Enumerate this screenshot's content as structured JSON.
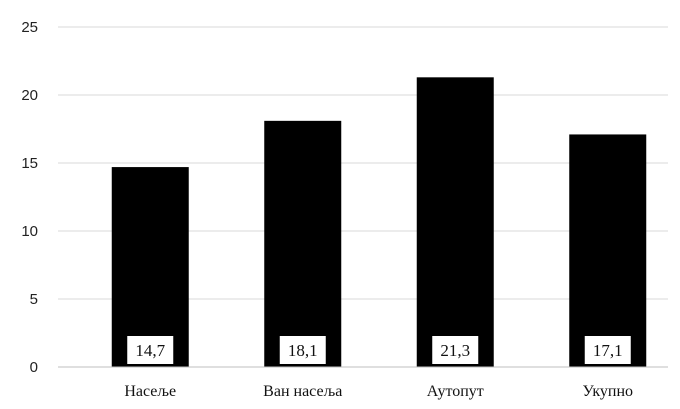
{
  "chart_data": {
    "type": "bar",
    "categories": [
      "Насеље",
      "Ван насеља",
      "Аутопут",
      "Укупно"
    ],
    "values": [
      14.7,
      18.1,
      21.3,
      17.1
    ],
    "data_labels": [
      "14,7",
      "18,1",
      "21,3",
      "17,1"
    ],
    "title": "",
    "xlabel": "",
    "ylabel": "",
    "ylim": [
      0,
      25
    ],
    "yticks": [
      0,
      5,
      10,
      15,
      20,
      25
    ],
    "grid": true,
    "legend": "none",
    "colors": {
      "bar": "#000000",
      "label_box": "#ffffff",
      "grid": "#d9d9d9",
      "axis": "#bfbfbf"
    }
  }
}
